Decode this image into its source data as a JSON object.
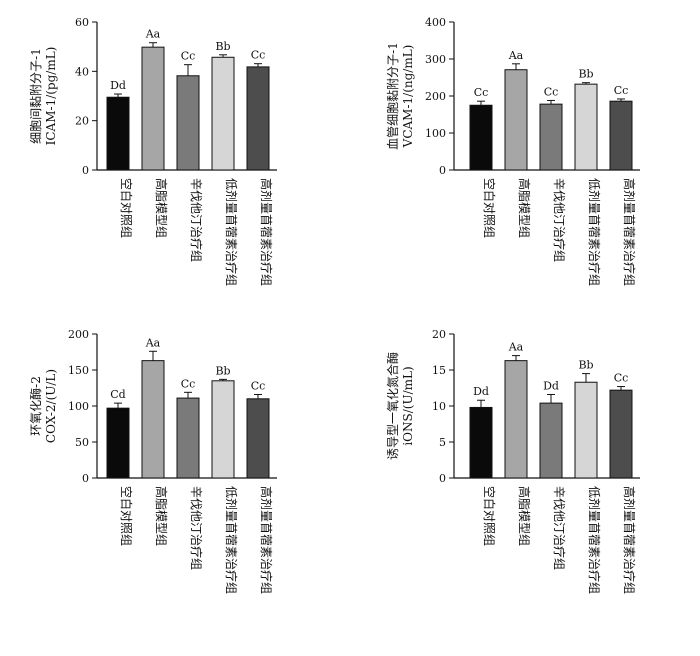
{
  "chart_data": [
    {
      "type": "bar",
      "ylabel_lines": [
        "细胞间黏附分子-1",
        "ICAM-1/(pg/mL)"
      ],
      "ylim": [
        0,
        60
      ],
      "yticks": [
        0,
        20,
        40,
        60
      ],
      "categories": [
        "空白对照组",
        "高脂模型组",
        "辛伐他汀治疗组",
        "低剂量苜蓿素治疗组",
        "高剂量苜蓿素治疗组"
      ],
      "values": [
        29.5,
        49.8,
        38.2,
        45.7,
        41.8
      ],
      "errors": [
        1.3,
        1.8,
        4.5,
        1.0,
        1.3
      ],
      "significance": [
        "Dd",
        "Aa",
        "Cc",
        "Bb",
        "Cc"
      ],
      "colors": [
        "#0a0a0a",
        "#a6a6a6",
        "#7a7a7a",
        "#d6d6d6",
        "#4d4d4d"
      ],
      "grid": false
    },
    {
      "type": "bar",
      "ylabel_lines": [
        "血管细胞黏附分子-1",
        "VCAM-1/(ng/mL)"
      ],
      "ylim": [
        0,
        400
      ],
      "yticks": [
        0,
        100,
        200,
        300,
        400
      ],
      "categories": [
        "空白对照组",
        "高脂模型组",
        "辛伐他汀治疗组",
        "低剂量苜蓿素治疗组",
        "高剂量苜蓿素治疗组"
      ],
      "values": [
        175,
        271,
        178,
        232,
        186
      ],
      "errors": [
        11,
        16,
        10,
        4,
        6
      ],
      "significance": [
        "Cc",
        "Aa",
        "Cc",
        "Bb",
        "Cc"
      ],
      "colors": [
        "#0a0a0a",
        "#a6a6a6",
        "#7a7a7a",
        "#d6d6d6",
        "#4d4d4d"
      ],
      "grid": false
    },
    {
      "type": "bar",
      "ylabel_lines": [
        "环氧化酶-2",
        "COX-2/(U/L)"
      ],
      "ylim": [
        0,
        200
      ],
      "yticks": [
        0,
        50,
        100,
        150,
        200
      ],
      "categories": [
        "空白对照组",
        "高脂模型组",
        "辛伐他汀治疗组",
        "低剂量苜蓿素治疗组",
        "高剂量苜蓿素治疗组"
      ],
      "values": [
        97,
        163,
        111,
        135,
        110
      ],
      "errors": [
        7,
        13,
        8,
        2,
        6
      ],
      "significance": [
        "Cd",
        "Aa",
        "Cc",
        "Bb",
        "Cc"
      ],
      "colors": [
        "#0a0a0a",
        "#a6a6a6",
        "#7a7a7a",
        "#d6d6d6",
        "#4d4d4d"
      ],
      "grid": false
    },
    {
      "type": "bar",
      "ylabel_lines": [
        "诱导型一氧化氮合酶",
        "iONS/(U/mL)"
      ],
      "ylim": [
        0,
        20
      ],
      "yticks": [
        0,
        5,
        10,
        15,
        20
      ],
      "categories": [
        "空白对照组",
        "高脂模型组",
        "辛伐他汀治疗组",
        "低剂量苜蓿素治疗组",
        "高剂量苜蓿素治疗组"
      ],
      "values": [
        9.8,
        16.3,
        10.4,
        13.3,
        12.2
      ],
      "errors": [
        1.0,
        0.7,
        1.2,
        1.2,
        0.5
      ],
      "significance": [
        "Dd",
        "Aa",
        "Dd",
        "Bb",
        "Cc"
      ],
      "colors": [
        "#0a0a0a",
        "#a6a6a6",
        "#7a7a7a",
        "#d6d6d6",
        "#4d4d4d"
      ],
      "grid": false
    }
  ]
}
